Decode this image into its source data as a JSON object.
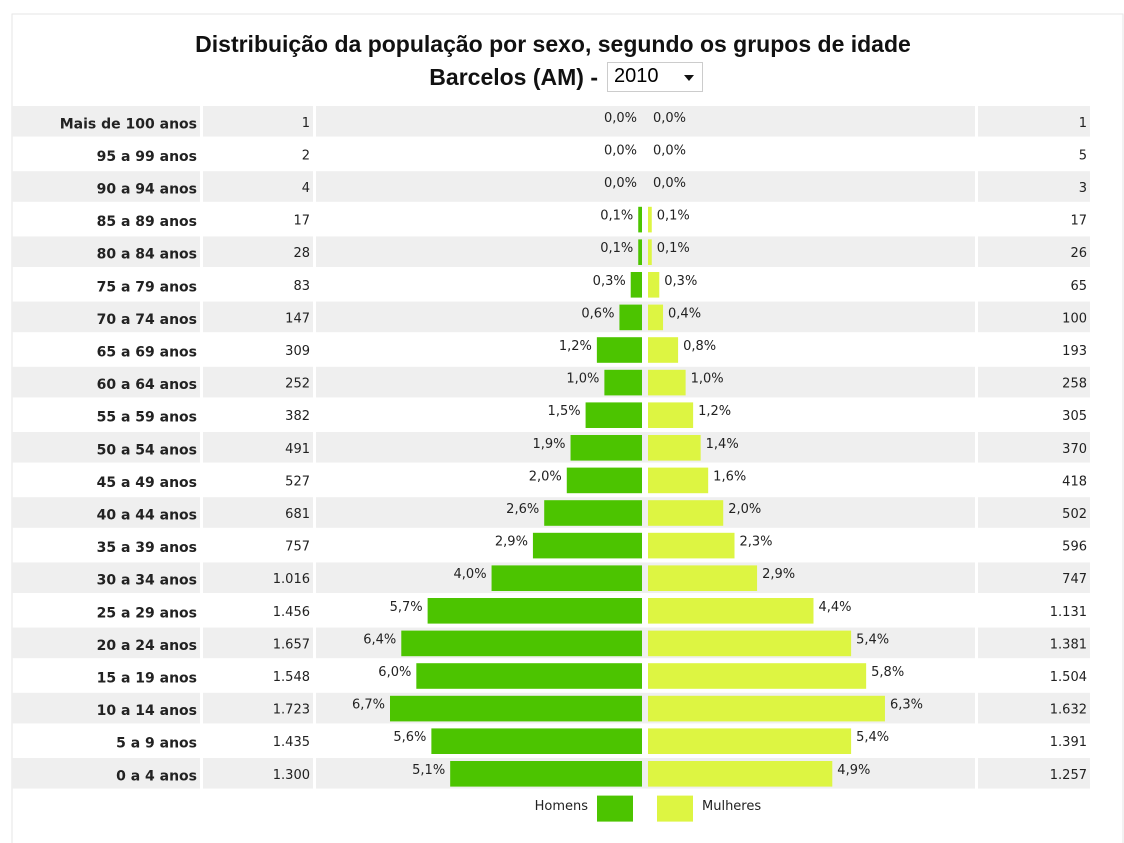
{
  "chart_data": {
    "type": "pyramid",
    "title": "Distribuição da população por sexo, segundo os grupos de idade",
    "subtitle": "Barcelos (AM) -",
    "year": "2010",
    "categories": [
      "Mais de 100 anos",
      "95 a 99 anos",
      "90 a 94 anos",
      "85 a 89 anos",
      "80 a 84 anos",
      "75 a 79 anos",
      "70 a 74 anos",
      "65 a 69 anos",
      "60 a 64 anos",
      "55 a 59 anos",
      "50 a 54 anos",
      "45 a 49 anos",
      "40 a 44 anos",
      "35 a 39 anos",
      "30 a 34 anos",
      "25 a 29 anos",
      "20 a 24 anos",
      "15 a 19 anos",
      "10 a 14 anos",
      "5 a 9 anos",
      "0 a 4 anos"
    ],
    "series": [
      {
        "name": "Homens",
        "color": "#4cc400",
        "values": [
          0.0,
          0.0,
          0.0,
          0.1,
          0.1,
          0.3,
          0.6,
          1.2,
          1.0,
          1.5,
          1.9,
          2.0,
          2.6,
          2.9,
          4.0,
          5.7,
          6.4,
          6.0,
          6.7,
          5.6,
          5.1
        ],
        "value_labels": [
          "0,0%",
          "0,0%",
          "0,0%",
          "0,1%",
          "0,1%",
          "0,3%",
          "0,6%",
          "1,2%",
          "1,0%",
          "1,5%",
          "1,9%",
          "2,0%",
          "2,6%",
          "2,9%",
          "4,0%",
          "5,7%",
          "6,4%",
          "6,0%",
          "6,7%",
          "5,6%",
          "5,1%"
        ],
        "counts": [
          1,
          2,
          4,
          17,
          28,
          83,
          147,
          309,
          252,
          382,
          491,
          527,
          681,
          757,
          1016,
          1456,
          1657,
          1548,
          1723,
          1435,
          1300
        ],
        "count_labels": [
          "1",
          "2",
          "4",
          "17",
          "28",
          "83",
          "147",
          "309",
          "252",
          "382",
          "491",
          "527",
          "681",
          "757",
          "1.016",
          "1.456",
          "1.657",
          "1.548",
          "1.723",
          "1.435",
          "1.300"
        ]
      },
      {
        "name": "Mulheres",
        "color": "#ddf542",
        "values": [
          0.0,
          0.0,
          0.0,
          0.1,
          0.1,
          0.3,
          0.4,
          0.8,
          1.0,
          1.2,
          1.4,
          1.6,
          2.0,
          2.3,
          2.9,
          4.4,
          5.4,
          5.8,
          6.3,
          5.4,
          4.9
        ],
        "value_labels": [
          "0,0%",
          "0,0%",
          "0,0%",
          "0,1%",
          "0,1%",
          "0,3%",
          "0,4%",
          "0,8%",
          "1,0%",
          "1,2%",
          "1,4%",
          "1,6%",
          "2,0%",
          "2,3%",
          "2,9%",
          "4,4%",
          "5,4%",
          "5,8%",
          "6,3%",
          "5,4%",
          "4,9%"
        ],
        "counts": [
          1,
          5,
          3,
          17,
          26,
          65,
          100,
          193,
          258,
          305,
          370,
          418,
          502,
          596,
          747,
          1131,
          1381,
          1504,
          1632,
          1391,
          1257
        ],
        "count_labels": [
          "1",
          "5",
          "3",
          "17",
          "26",
          "65",
          "100",
          "193",
          "258",
          "305",
          "370",
          "418",
          "502",
          "596",
          "747",
          "1.131",
          "1.381",
          "1.504",
          "1.632",
          "1.391",
          "1.257"
        ]
      }
    ]
  }
}
